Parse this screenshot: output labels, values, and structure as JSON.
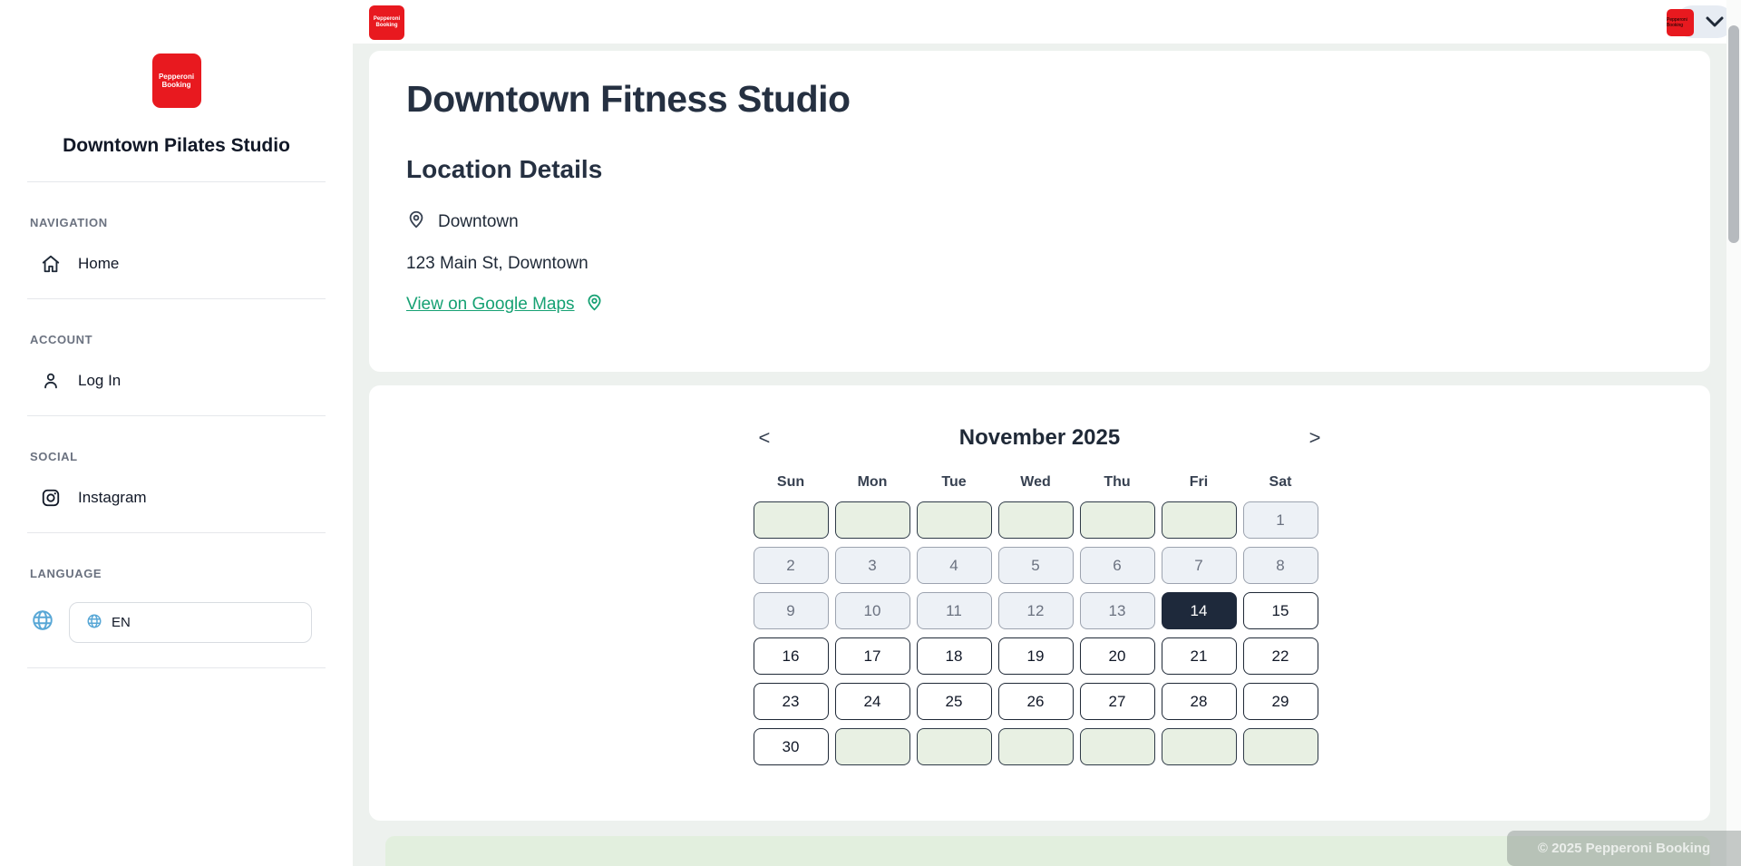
{
  "brand": {
    "logo_text": "Pepperoni Booking",
    "logo_color": "#e8191f"
  },
  "sidebar": {
    "studio_name": "Downtown Pilates Studio",
    "navigation": {
      "label": "NAVIGATION",
      "home": "Home"
    },
    "account": {
      "label": "ACCOUNT",
      "login": "Log In"
    },
    "social": {
      "label": "SOCIAL",
      "instagram": "Instagram"
    },
    "language": {
      "label": "LANGUAGE",
      "selected": "EN"
    }
  },
  "main": {
    "heading": "Downtown Fitness Studio",
    "location": {
      "section_title": "Location Details",
      "name": "Downtown",
      "address": "123 Main St, Downtown",
      "maps_link": "View on Google Maps"
    },
    "calendar": {
      "prev": "<",
      "next": ">",
      "title": "November 2025",
      "day_headers": [
        "Sun",
        "Mon",
        "Tue",
        "Wed",
        "Thu",
        "Fri",
        "Sat"
      ],
      "selected_date": "14",
      "weeks": [
        [
          {
            "d": "",
            "t": "empty"
          },
          {
            "d": "",
            "t": "empty"
          },
          {
            "d": "",
            "t": "empty"
          },
          {
            "d": "",
            "t": "empty"
          },
          {
            "d": "",
            "t": "empty"
          },
          {
            "d": "",
            "t": "empty"
          },
          {
            "d": "1",
            "t": "disabled"
          }
        ],
        [
          {
            "d": "2",
            "t": "disabled"
          },
          {
            "d": "3",
            "t": "disabled"
          },
          {
            "d": "4",
            "t": "disabled"
          },
          {
            "d": "5",
            "t": "disabled"
          },
          {
            "d": "6",
            "t": "disabled"
          },
          {
            "d": "7",
            "t": "disabled"
          },
          {
            "d": "8",
            "t": "disabled"
          }
        ],
        [
          {
            "d": "9",
            "t": "disabled"
          },
          {
            "d": "10",
            "t": "disabled"
          },
          {
            "d": "11",
            "t": "disabled"
          },
          {
            "d": "12",
            "t": "disabled"
          },
          {
            "d": "13",
            "t": "disabled"
          },
          {
            "d": "14",
            "t": "selected"
          },
          {
            "d": "15",
            "t": "available"
          }
        ],
        [
          {
            "d": "16",
            "t": "available"
          },
          {
            "d": "17",
            "t": "available"
          },
          {
            "d": "18",
            "t": "available"
          },
          {
            "d": "19",
            "t": "available"
          },
          {
            "d": "20",
            "t": "available"
          },
          {
            "d": "21",
            "t": "available"
          },
          {
            "d": "22",
            "t": "available"
          }
        ],
        [
          {
            "d": "23",
            "t": "available"
          },
          {
            "d": "24",
            "t": "available"
          },
          {
            "d": "25",
            "t": "available"
          },
          {
            "d": "26",
            "t": "available"
          },
          {
            "d": "27",
            "t": "available"
          },
          {
            "d": "28",
            "t": "available"
          },
          {
            "d": "29",
            "t": "available"
          }
        ],
        [
          {
            "d": "30",
            "t": "available"
          },
          {
            "d": "",
            "t": "empty"
          },
          {
            "d": "",
            "t": "empty"
          },
          {
            "d": "",
            "t": "empty"
          },
          {
            "d": "",
            "t": "empty"
          },
          {
            "d": "",
            "t": "empty"
          },
          {
            "d": "",
            "t": "empty"
          }
        ]
      ]
    }
  },
  "footer": {
    "copyright": "© 2025 Pepperoni Booking"
  },
  "colors": {
    "accent_red": "#e8191f",
    "link_green": "#16a173",
    "selected_cell": "#1e293b",
    "empty_cell_green": "#e8f0e3",
    "disabled_cell": "#edf1f6",
    "page_background": "#edf1ee"
  }
}
